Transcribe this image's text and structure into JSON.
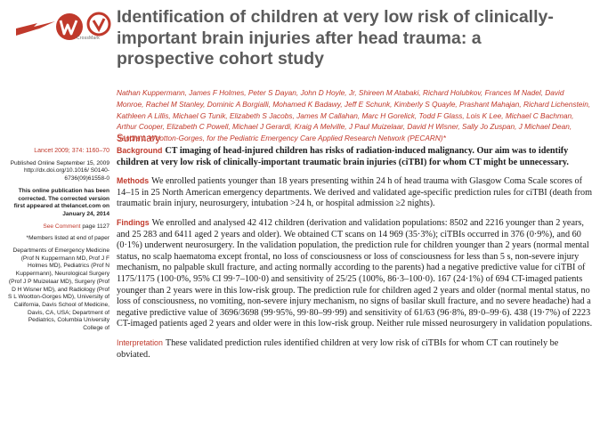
{
  "header": {
    "title": "Identification of children at very low risk of clinically-important brain injuries after head trauma: a prospective cohort study",
    "crossmark_label": "CrossMark",
    "logo_icons": [
      "lancet-arrow-icon",
      "w-logo-icon",
      "crossmark-icon"
    ],
    "authors": "Nathan Kuppermann, James F Holmes, Peter S Dayan, John D Hoyle, Jr, Shireen M Atabaki, Richard Holubkov, Frances M Nadel, David Monroe, Rachel M Stanley, Dominic A Borgialli, Mohamed K Badawy, Jeff E Schunk, Kimberly S Quayle, Prashant Mahajan, Richard Lichenstein, Kathleen A Lillis, Michael G Tunik, Elizabeth S Jacobs, James M Callahan, Marc H Gorelick, Todd F Glass, Lois K Lee, Michael C Bachman, Arthur Cooper, Elizabeth C Powell, Michael J Gerardi, Kraig A Melville, J Paul Muizelaar, David H Wisner, Sally Jo Zuspan, J Michael Dean, Sandra L Wootton-Gorges, for the Pediatric Emergency Care Applied Research Network (PECARN)*"
  },
  "sidebar": {
    "citation": "Lancet 2009; 374: 1160–70",
    "published": "Published Online September 15, 2009 http://dx.doi.org/10.1016/ S0140-6736(09)61558-0",
    "correction": "This online publication has been corrected. The corrected version first appeared at thelancet.com on January 24, 2014",
    "comment_link": "See Comment",
    "comment_page": "page 1127",
    "members_note": "*Members listed at end of paper",
    "affiliations": "Departments of Emergency Medicine (Prof N Kuppermann MD, Prof J F Holmes MD), Pediatrics (Prof N Kuppermann), Neurological Surgery (Prof J P Muizelaar MD), Surgery (Prof D H Wisner MD), and Radiology (Prof S L Wootton-Gorges MD), University of California, Davis School of Medicine, Davis, CA, USA; Department of Pediatrics, Columbia University College of"
  },
  "summary": {
    "heading": "Summary",
    "background_label": "Background",
    "background_text": "CT imaging of head-injured children has risks of radiation-induced malignancy. Our aim was to identify children at very low risk of clinically-important traumatic brain injuries (ciTBI) for whom CT might be unnecessary.",
    "methods_label": "Methods",
    "methods_text": "We enrolled patients younger than 18 years presenting within 24 h of head trauma with Glasgow Coma Scale scores of 14–15 in 25 North American emergency departments. We derived and validated age-specific prediction rules for ciTBI (death from traumatic brain injury, neurosurgery, intubation >24 h, or hospital admission ≥2 nights).",
    "findings_label": "Findings",
    "findings_text": "We enrolled and analysed 42 412 children (derivation and validation populations: 8502 and 2216 younger than 2 years, and 25 283 and 6411 aged 2 years and older). We obtained CT scans on 14 969 (35·3%); ciTBIs occurred in 376 (0·9%), and 60 (0·1%) underwent neurosurgery. In the validation population, the prediction rule for children younger than 2 years (normal mental status, no scalp haematoma except frontal, no loss of consciousness or loss of consciousness for less than 5 s, non-severe injury mechanism, no palpable skull fracture, and acting normally according to the parents) had a negative predictive value for ciTBI of 1175/1175 (100·0%, 95% CI 99·7–100·0) and sensitivity of 25/25 (100%, 86·3–100·0). 167 (24·1%) of 694 CT-imaged patients younger than 2 years were in this low-risk group. The prediction rule for children aged 2 years and older (normal mental status, no loss of consciousness, no vomiting, non-severe injury mechanism, no signs of basilar skull fracture, and no severe headache) had a negative predictive value of 3696/3698 (99·95%, 99·80–99·99) and sensitivity of 61/63 (96·8%, 89·0–99·6). 438 (19·7%) of 2223 CT-imaged patients aged 2 years and older were in this low-risk group. Neither rule missed neurosurgery in validation populations.",
    "interpretation_label": "Interpretation",
    "interpretation_text": "These validated prediction rules identified children at very low risk of ciTBIs for whom CT can routinely be obviated."
  },
  "colors": {
    "accent": "#c0392b",
    "title": "#5b5b5b",
    "text": "#1a1a1a"
  }
}
